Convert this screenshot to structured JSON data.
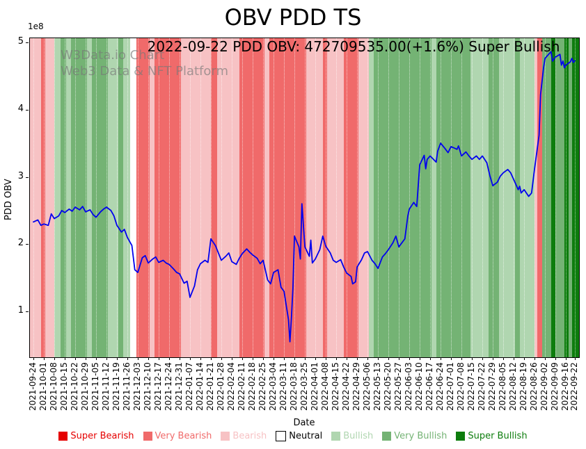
{
  "title": "OBV PDD TS",
  "subtitle": "2022-09-22 PDD OBV: 472709535.00(+1.6%) Super Bullish",
  "watermark": {
    "line1": "W3Data.io Chart",
    "line2": "Web3 Data & NFT Platform"
  },
  "axes": {
    "x_label": "Date",
    "y_label": "PDD OBV",
    "offset_text": "1e8",
    "y_ticks": [
      1,
      2,
      3,
      4,
      5
    ],
    "x_ticks": [
      "2021-09-24",
      "2021-10-01",
      "2021-10-08",
      "2021-10-15",
      "2021-10-22",
      "2021-10-29",
      "2021-11-05",
      "2021-11-12",
      "2021-11-19",
      "2021-11-26",
      "2021-12-03",
      "2021-12-10",
      "2021-12-17",
      "2021-12-24",
      "2021-12-31",
      "2022-01-07",
      "2022-01-14",
      "2022-01-21",
      "2022-01-28",
      "2022-02-04",
      "2022-02-11",
      "2022-02-18",
      "2022-02-25",
      "2022-03-04",
      "2022-03-11",
      "2022-03-18",
      "2022-03-25",
      "2022-04-01",
      "2022-04-08",
      "2022-04-15",
      "2022-04-22",
      "2022-04-29",
      "2022-05-06",
      "2022-05-13",
      "2022-05-20",
      "2022-05-27",
      "2022-06-03",
      "2022-06-10",
      "2022-06-17",
      "2022-06-24",
      "2022-07-01",
      "2022-07-08",
      "2022-07-15",
      "2022-07-22",
      "2022-07-29",
      "2022-08-05",
      "2022-08-12",
      "2022-08-19",
      "2022-08-26",
      "2022-09-02",
      "2022-09-09",
      "2022-09-16",
      "2022-09-22"
    ]
  },
  "legend": [
    {
      "label": "Super Bearish",
      "color": "#e50000",
      "border": false
    },
    {
      "label": "Very Bearish",
      "color": "#f06a6a",
      "border": false
    },
    {
      "label": "Bearish",
      "color": "#f7c2c4",
      "border": false
    },
    {
      "label": "Neutral",
      "color": "#ffffff",
      "text_color": "#000000",
      "border": true
    },
    {
      "label": "Bullish",
      "color": "#b0d6b0",
      "border": false
    },
    {
      "label": "Very Bullish",
      "color": "#74b374",
      "border": false
    },
    {
      "label": "Super Bullish",
      "color": "#0d7d0d",
      "border": false
    }
  ],
  "chart_data": {
    "type": "line",
    "title": "OBV PDD TS",
    "xlabel": "Date",
    "ylabel": "PDD OBV",
    "x_range": [
      "2021-09-24",
      "2022-09-22"
    ],
    "ylim": [
      0.32,
      5.07
    ],
    "y_unit_multiplier": 100000000,
    "grid": "vertical-dotted",
    "legend_position": "bottom",
    "latest": {
      "date": "2022-09-22",
      "obv": 472709535.0,
      "change_pct": 1.6,
      "signal": "Super Bullish"
    },
    "series": [
      {
        "name": "PDD OBV",
        "color": "#0000ee",
        "points": [
          [
            "2021-09-24",
            2.33
          ],
          [
            "2021-09-27",
            2.36
          ],
          [
            "2021-09-29",
            2.28
          ],
          [
            "2021-10-01",
            2.3
          ],
          [
            "2021-10-04",
            2.28
          ],
          [
            "2021-10-06",
            2.45
          ],
          [
            "2021-10-08",
            2.38
          ],
          [
            "2021-10-11",
            2.42
          ],
          [
            "2021-10-13",
            2.5
          ],
          [
            "2021-10-15",
            2.47
          ],
          [
            "2021-10-18",
            2.52
          ],
          [
            "2021-10-20",
            2.49
          ],
          [
            "2021-10-22",
            2.55
          ],
          [
            "2021-10-25",
            2.51
          ],
          [
            "2021-10-27",
            2.56
          ],
          [
            "2021-10-29",
            2.48
          ],
          [
            "2021-11-01",
            2.51
          ],
          [
            "2021-11-03",
            2.44
          ],
          [
            "2021-11-05",
            2.4
          ],
          [
            "2021-11-08",
            2.48
          ],
          [
            "2021-11-10",
            2.52
          ],
          [
            "2021-11-12",
            2.55
          ],
          [
            "2021-11-15",
            2.5
          ],
          [
            "2021-11-17",
            2.42
          ],
          [
            "2021-11-19",
            2.28
          ],
          [
            "2021-11-22",
            2.18
          ],
          [
            "2021-11-24",
            2.22
          ],
          [
            "2021-11-26",
            2.1
          ],
          [
            "2021-11-29",
            1.98
          ],
          [
            "2021-12-01",
            1.62
          ],
          [
            "2021-12-03",
            1.58
          ],
          [
            "2021-12-06",
            1.8
          ],
          [
            "2021-12-08",
            1.83
          ],
          [
            "2021-12-10",
            1.72
          ],
          [
            "2021-12-13",
            1.78
          ],
          [
            "2021-12-15",
            1.81
          ],
          [
            "2021-12-17",
            1.73
          ],
          [
            "2021-12-20",
            1.76
          ],
          [
            "2021-12-22",
            1.72
          ],
          [
            "2021-12-24",
            1.7
          ],
          [
            "2021-12-27",
            1.63
          ],
          [
            "2021-12-29",
            1.58
          ],
          [
            "2021-12-31",
            1.56
          ],
          [
            "2022-01-03",
            1.42
          ],
          [
            "2022-01-05",
            1.45
          ],
          [
            "2022-01-07",
            1.21
          ],
          [
            "2022-01-10",
            1.38
          ],
          [
            "2022-01-12",
            1.62
          ],
          [
            "2022-01-14",
            1.71
          ],
          [
            "2022-01-17",
            1.76
          ],
          [
            "2022-01-19",
            1.73
          ],
          [
            "2022-01-21",
            2.08
          ],
          [
            "2022-01-24",
            1.98
          ],
          [
            "2022-01-26",
            1.87
          ],
          [
            "2022-01-28",
            1.76
          ],
          [
            "2022-01-31",
            1.82
          ],
          [
            "2022-02-02",
            1.87
          ],
          [
            "2022-02-04",
            1.74
          ],
          [
            "2022-02-07",
            1.7
          ],
          [
            "2022-02-09",
            1.79
          ],
          [
            "2022-02-11",
            1.86
          ],
          [
            "2022-02-14",
            1.93
          ],
          [
            "2022-02-16",
            1.88
          ],
          [
            "2022-02-18",
            1.84
          ],
          [
            "2022-02-21",
            1.79
          ],
          [
            "2022-02-23",
            1.71
          ],
          [
            "2022-02-25",
            1.76
          ],
          [
            "2022-02-28",
            1.47
          ],
          [
            "2022-03-02",
            1.41
          ],
          [
            "2022-03-04",
            1.58
          ],
          [
            "2022-03-07",
            1.62
          ],
          [
            "2022-03-09",
            1.36
          ],
          [
            "2022-03-11",
            1.3
          ],
          [
            "2022-03-14",
            0.88
          ],
          [
            "2022-03-15",
            0.55
          ],
          [
            "2022-03-16",
            0.92
          ],
          [
            "2022-03-17",
            1.35
          ],
          [
            "2022-03-18",
            2.12
          ],
          [
            "2022-03-21",
            1.96
          ],
          [
            "2022-03-22",
            1.78
          ],
          [
            "2022-03-23",
            2.6
          ],
          [
            "2022-03-25",
            1.96
          ],
          [
            "2022-03-28",
            1.82
          ],
          [
            "2022-03-29",
            2.06
          ],
          [
            "2022-03-30",
            1.72
          ],
          [
            "2022-04-01",
            1.78
          ],
          [
            "2022-04-04",
            1.92
          ],
          [
            "2022-04-06",
            2.12
          ],
          [
            "2022-04-08",
            1.97
          ],
          [
            "2022-04-11",
            1.87
          ],
          [
            "2022-04-13",
            1.76
          ],
          [
            "2022-04-15",
            1.73
          ],
          [
            "2022-04-18",
            1.77
          ],
          [
            "2022-04-20",
            1.66
          ],
          [
            "2022-04-22",
            1.57
          ],
          [
            "2022-04-25",
            1.52
          ],
          [
            "2022-04-26",
            1.41
          ],
          [
            "2022-04-28",
            1.44
          ],
          [
            "2022-04-29",
            1.66
          ],
          [
            "2022-05-02",
            1.77
          ],
          [
            "2022-05-04",
            1.87
          ],
          [
            "2022-05-06",
            1.89
          ],
          [
            "2022-05-09",
            1.76
          ],
          [
            "2022-05-11",
            1.71
          ],
          [
            "2022-05-13",
            1.64
          ],
          [
            "2022-05-16",
            1.81
          ],
          [
            "2022-05-18",
            1.86
          ],
          [
            "2022-05-20",
            1.92
          ],
          [
            "2022-05-23",
            2.02
          ],
          [
            "2022-05-25",
            2.12
          ],
          [
            "2022-05-27",
            1.96
          ],
          [
            "2022-05-31",
            2.08
          ],
          [
            "2022-06-02",
            2.42
          ],
          [
            "2022-06-03",
            2.52
          ],
          [
            "2022-06-06",
            2.62
          ],
          [
            "2022-06-08",
            2.56
          ],
          [
            "2022-06-10",
            3.18
          ],
          [
            "2022-06-13",
            3.32
          ],
          [
            "2022-06-14",
            3.12
          ],
          [
            "2022-06-15",
            3.26
          ],
          [
            "2022-06-17",
            3.31
          ],
          [
            "2022-06-21",
            3.22
          ],
          [
            "2022-06-22",
            3.38
          ],
          [
            "2022-06-24",
            3.5
          ],
          [
            "2022-06-27",
            3.42
          ],
          [
            "2022-06-29",
            3.36
          ],
          [
            "2022-07-01",
            3.45
          ],
          [
            "2022-07-05",
            3.41
          ],
          [
            "2022-07-06",
            3.46
          ],
          [
            "2022-07-08",
            3.31
          ],
          [
            "2022-07-11",
            3.37
          ],
          [
            "2022-07-13",
            3.31
          ],
          [
            "2022-07-15",
            3.26
          ],
          [
            "2022-07-18",
            3.31
          ],
          [
            "2022-07-20",
            3.26
          ],
          [
            "2022-07-22",
            3.31
          ],
          [
            "2022-07-25",
            3.21
          ],
          [
            "2022-07-27",
            3.02
          ],
          [
            "2022-07-29",
            2.87
          ],
          [
            "2022-08-01",
            2.92
          ],
          [
            "2022-08-03",
            3.01
          ],
          [
            "2022-08-05",
            3.06
          ],
          [
            "2022-08-08",
            3.11
          ],
          [
            "2022-08-10",
            3.06
          ],
          [
            "2022-08-12",
            2.96
          ],
          [
            "2022-08-15",
            2.81
          ],
          [
            "2022-08-16",
            2.86
          ],
          [
            "2022-08-17",
            2.76
          ],
          [
            "2022-08-19",
            2.81
          ],
          [
            "2022-08-22",
            2.71
          ],
          [
            "2022-08-24",
            2.76
          ],
          [
            "2022-08-26",
            3.12
          ],
          [
            "2022-08-29",
            3.62
          ],
          [
            "2022-08-30",
            4.22
          ],
          [
            "2022-09-01",
            4.62
          ],
          [
            "2022-09-02",
            4.76
          ],
          [
            "2022-09-06",
            4.86
          ],
          [
            "2022-09-07",
            4.72
          ],
          [
            "2022-09-09",
            4.78
          ],
          [
            "2022-09-12",
            4.82
          ],
          [
            "2022-09-13",
            4.66
          ],
          [
            "2022-09-14",
            4.72
          ],
          [
            "2022-09-15",
            4.62
          ],
          [
            "2022-09-16",
            4.66
          ],
          [
            "2022-09-19",
            4.71
          ],
          [
            "2022-09-20",
            4.76
          ],
          [
            "2022-09-21",
            4.7
          ],
          [
            "2022-09-22",
            4.727
          ]
        ]
      }
    ],
    "sentiment_colors": {
      "super_bearish": "#e50000",
      "very_bearish": "#f06a6a",
      "bearish": "#f7c2c4",
      "neutral": "#ffffff",
      "bullish": "#b0d6b0",
      "very_bullish": "#74b374",
      "super_bullish": "#0d7d0d"
    },
    "sentiment_bands": [
      [
        "2021-09-24",
        "2021-09-29",
        "bearish"
      ],
      [
        "2021-09-29",
        "2021-10-02",
        "very_bearish"
      ],
      [
        "2021-10-02",
        "2021-10-08",
        "bearish"
      ],
      [
        "2021-10-08",
        "2021-10-12",
        "bullish"
      ],
      [
        "2021-10-12",
        "2021-10-16",
        "very_bullish"
      ],
      [
        "2021-10-16",
        "2021-10-19",
        "bullish"
      ],
      [
        "2021-10-19",
        "2021-10-30",
        "very_bullish"
      ],
      [
        "2021-10-30",
        "2021-11-02",
        "bullish"
      ],
      [
        "2021-11-02",
        "2021-11-13",
        "very_bullish"
      ],
      [
        "2021-11-13",
        "2021-11-20",
        "bullish"
      ],
      [
        "2021-11-20",
        "2021-11-23",
        "very_bullish"
      ],
      [
        "2021-11-23",
        "2021-11-28",
        "bullish"
      ],
      [
        "2021-11-28",
        "2021-12-02",
        "neutral"
      ],
      [
        "2021-12-02",
        "2021-12-11",
        "very_bearish"
      ],
      [
        "2021-12-11",
        "2021-12-14",
        "bearish"
      ],
      [
        "2021-12-14",
        "2022-01-01",
        "very_bearish"
      ],
      [
        "2022-01-01",
        "2022-01-21",
        "bearish"
      ],
      [
        "2022-01-21",
        "2022-01-25",
        "very_bearish"
      ],
      [
        "2022-01-25",
        "2022-02-09",
        "bearish"
      ],
      [
        "2022-02-09",
        "2022-02-26",
        "very_bearish"
      ],
      [
        "2022-02-26",
        "2022-03-01",
        "bearish"
      ],
      [
        "2022-03-01",
        "2022-03-26",
        "very_bearish"
      ],
      [
        "2022-03-26",
        "2022-04-06",
        "bearish"
      ],
      [
        "2022-04-06",
        "2022-04-09",
        "very_bearish"
      ],
      [
        "2022-04-09",
        "2022-04-20",
        "bearish"
      ],
      [
        "2022-04-20",
        "2022-04-30",
        "very_bearish"
      ],
      [
        "2022-04-30",
        "2022-05-07",
        "bearish"
      ],
      [
        "2022-05-07",
        "2022-05-10",
        "bullish"
      ],
      [
        "2022-05-10",
        "2022-06-18",
        "very_bullish"
      ],
      [
        "2022-06-18",
        "2022-06-21",
        "bullish"
      ],
      [
        "2022-06-21",
        "2022-07-14",
        "very_bullish"
      ],
      [
        "2022-07-14",
        "2022-07-26",
        "bullish"
      ],
      [
        "2022-07-26",
        "2022-08-02",
        "very_bullish"
      ],
      [
        "2022-08-02",
        "2022-08-13",
        "bullish"
      ],
      [
        "2022-08-13",
        "2022-08-16",
        "very_bullish"
      ],
      [
        "2022-08-16",
        "2022-08-26",
        "bullish"
      ],
      [
        "2022-08-26",
        "2022-08-28",
        "bearish"
      ],
      [
        "2022-08-28",
        "2022-08-31",
        "very_bearish"
      ],
      [
        "2022-08-31",
        "2022-09-06",
        "very_bullish"
      ],
      [
        "2022-09-06",
        "2022-09-09",
        "super_bullish"
      ],
      [
        "2022-09-09",
        "2022-09-15",
        "very_bullish"
      ],
      [
        "2022-09-15",
        "2022-09-18",
        "super_bullish"
      ],
      [
        "2022-09-18",
        "2022-09-20",
        "very_bullish"
      ],
      [
        "2022-09-20",
        "2022-09-22",
        "super_bullish"
      ]
    ]
  }
}
